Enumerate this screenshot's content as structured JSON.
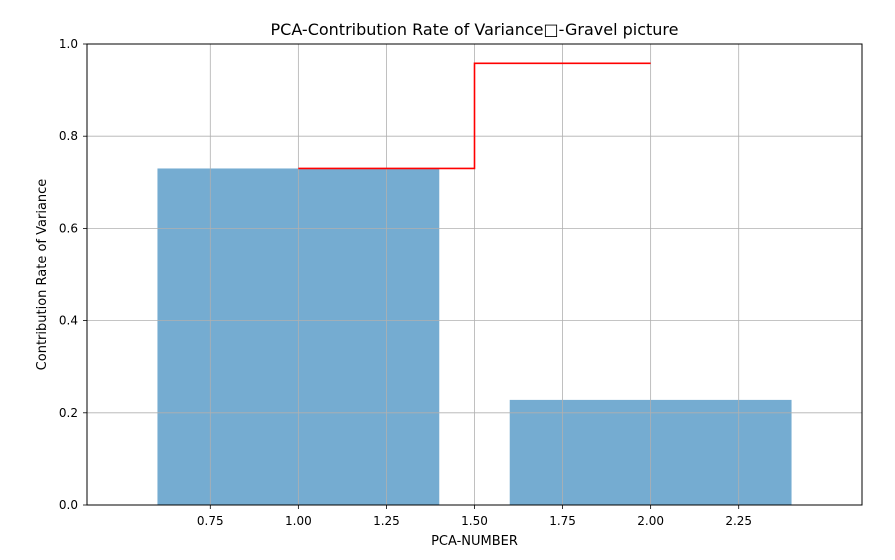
{
  "chart_data": {
    "type": "bar",
    "title": "PCA-Contribution Rate of Variance□-Gravel picture",
    "xlabel": "PCA-NUMBER",
    "ylabel": "Contribution Rate of Variance",
    "xlim": [
      0.4,
      2.6
    ],
    "ylim": [
      0.0,
      1.0
    ],
    "grid": true,
    "bar_color": "#75acd1",
    "step_color": "#ff0000",
    "bars": [
      {
        "x": 1,
        "width": 0.8,
        "value": 0.73
      },
      {
        "x": 2,
        "width": 0.8,
        "value": 0.228
      }
    ],
    "step_line": {
      "x": [
        1,
        2
      ],
      "y": [
        0.73,
        0.958
      ],
      "where": "mid"
    },
    "x_ticks": [
      0.75,
      1.0,
      1.25,
      1.5,
      1.75,
      2.0,
      2.25
    ],
    "x_tick_labels": [
      "0.75",
      "1.00",
      "1.25",
      "1.50",
      "1.75",
      "2.00",
      "2.25"
    ],
    "y_ticks": [
      0.0,
      0.2,
      0.4,
      0.6,
      0.8,
      1.0
    ],
    "y_tick_labels": [
      "0.0",
      "0.2",
      "0.4",
      "0.6",
      "0.8",
      "1.0"
    ]
  }
}
